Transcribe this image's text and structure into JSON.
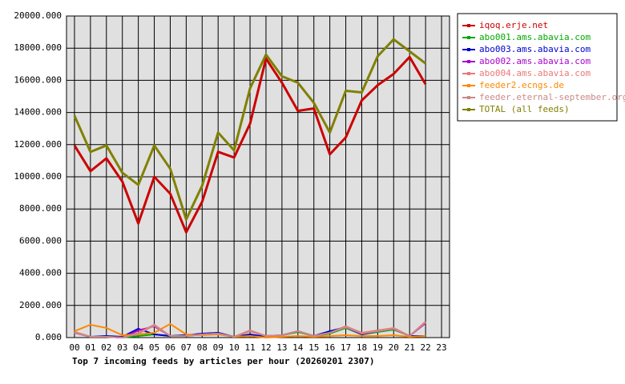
{
  "chart_data": {
    "type": "line",
    "title": "Top 7 incoming feeds by articles per hour (20260201 2307)",
    "categories": [
      "00",
      "01",
      "02",
      "03",
      "04",
      "05",
      "06",
      "07",
      "08",
      "09",
      "10",
      "11",
      "12",
      "13",
      "14",
      "15",
      "16",
      "17",
      "18",
      "19",
      "20",
      "21",
      "22",
      "23"
    ],
    "ylim": [
      0,
      20000
    ],
    "yticks": [
      {
        "value": 0,
        "label": "0.000"
      },
      {
        "value": 2000,
        "label": "2000.000"
      },
      {
        "value": 4000,
        "label": "4000.000"
      },
      {
        "value": 6000,
        "label": "6000.000"
      },
      {
        "value": 8000,
        "label": "8000.000"
      },
      {
        "value": 10000,
        "label": "10000.000"
      },
      {
        "value": 12000,
        "label": "12000.000"
      },
      {
        "value": 14000,
        "label": "14000.000"
      },
      {
        "value": 16000,
        "label": "16000.000"
      },
      {
        "value": 18000,
        "label": "18000.000"
      },
      {
        "value": 20000,
        "label": "20000.000"
      }
    ],
    "grid": true,
    "legend": "right",
    "series": [
      {
        "name": "iqoq.erje.net",
        "color": "#cc0000",
        "values": [
          11950,
          10350,
          11150,
          9700,
          7100,
          10000,
          8950,
          6550,
          8450,
          11550,
          11200,
          13300,
          17350,
          15850,
          14100,
          14250,
          11400,
          12450,
          14750,
          15700,
          16400,
          17450,
          15750,
          null
        ]
      },
      {
        "name": "abo001.ams.abavia.com",
        "color": "#00aa00",
        "values": [
          350,
          50,
          50,
          0,
          100,
          200,
          100,
          150,
          200,
          300,
          50,
          150,
          50,
          150,
          350,
          100,
          250,
          600,
          200,
          350,
          500,
          100,
          100,
          null
        ]
      },
      {
        "name": "abo003.ams.abavia.com",
        "color": "#0000cc",
        "values": [
          300,
          50,
          100,
          50,
          550,
          200,
          100,
          150,
          250,
          300,
          50,
          200,
          50,
          150,
          400,
          100,
          400,
          650,
          200,
          400,
          550,
          100,
          100,
          null
        ]
      },
      {
        "name": "abo002.ams.abavia.com",
        "color": "#aa00cc",
        "values": [
          300,
          50,
          50,
          0,
          450,
          700,
          100,
          100,
          200,
          250,
          50,
          400,
          100,
          150,
          400,
          100,
          300,
          700,
          250,
          450,
          550,
          100,
          900,
          null
        ]
      },
      {
        "name": "abo004.ams.abavia.com",
        "color": "#ee7777",
        "values": [
          350,
          50,
          50,
          0,
          300,
          800,
          100,
          100,
          200,
          250,
          50,
          450,
          100,
          150,
          400,
          100,
          300,
          700,
          300,
          450,
          600,
          100,
          1000,
          null
        ]
      },
      {
        "name": "feeder2.ecngs.de",
        "color": "#ff8800",
        "values": [
          400,
          800,
          600,
          150,
          200,
          300,
          850,
          200,
          150,
          200,
          50,
          100,
          0,
          50,
          100,
          50,
          100,
          150,
          100,
          100,
          150,
          50,
          100,
          null
        ]
      },
      {
        "name": "feeder.eternal-september.org",
        "color": "#cc8888",
        "values": [
          300,
          50,
          50,
          0,
          250,
          750,
          100,
          100,
          200,
          250,
          50,
          400,
          100,
          150,
          400,
          100,
          300,
          650,
          250,
          400,
          550,
          100,
          950,
          null
        ]
      },
      {
        "name": "TOTAL (all feeds)",
        "color": "#808000",
        "values": [
          13800,
          11550,
          11950,
          10250,
          9500,
          11950,
          10500,
          7350,
          9450,
          12750,
          11650,
          15500,
          17600,
          16250,
          15850,
          14600,
          12750,
          15350,
          15250,
          17500,
          18550,
          17800,
          17050,
          null
        ]
      }
    ]
  }
}
